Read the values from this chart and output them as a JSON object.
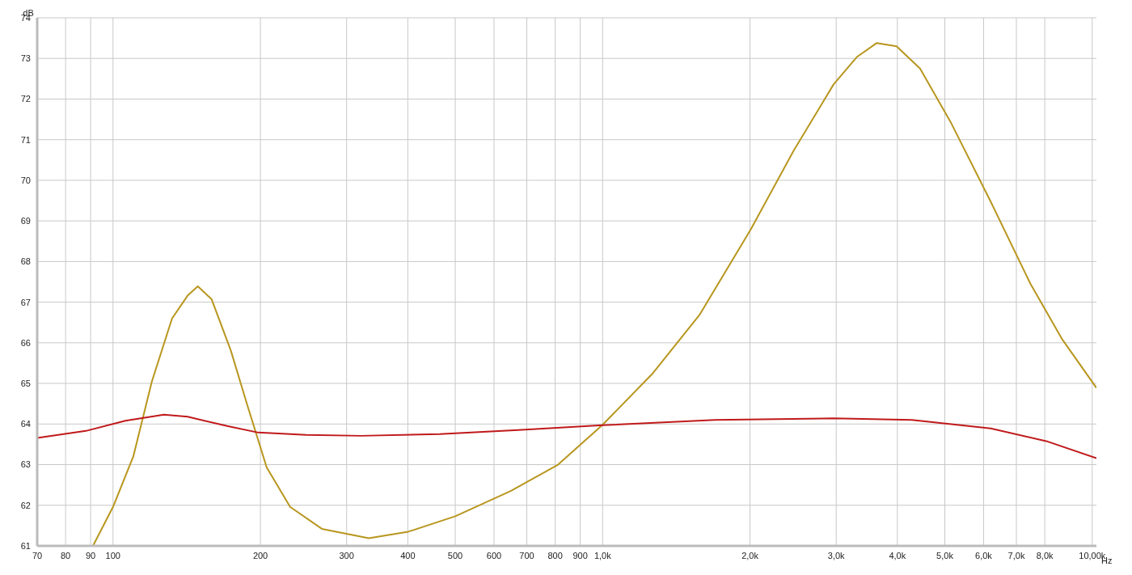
{
  "chart_data": {
    "type": "line",
    "xlabel": "Hz",
    "ylabel": "dB",
    "log": "x",
    "grid": true,
    "legend": false,
    "marker": "none",
    "line_style": "solid",
    "xlim": [
      70,
      10200
    ],
    "ylim": [
      61,
      74
    ],
    "xticks": [
      70,
      80,
      90,
      100,
      200,
      300,
      400,
      500,
      600,
      700,
      800,
      900,
      {
        "value": 1000,
        "label": "1,0k"
      },
      {
        "value": 2000,
        "label": "2,0k"
      },
      {
        "value": 3000,
        "label": "3,0k"
      },
      {
        "value": 4000,
        "label": "4,0k"
      },
      {
        "value": 5000,
        "label": "5,0k"
      },
      {
        "value": 6000,
        "label": "6,0k"
      },
      {
        "value": 7000,
        "label": "7,0k"
      },
      {
        "value": 8000,
        "label": "8,0k"
      },
      {
        "value": 10000,
        "label": "10,00k"
      }
    ],
    "yticks": [
      61,
      62,
      63,
      64,
      65,
      66,
      67,
      68,
      69,
      70,
      71,
      72,
      73,
      74
    ],
    "series": [
      {
        "color": "#b8961e",
        "x": [
          91,
          100,
          110,
          120,
          132,
          142,
          149,
          159,
          174,
          188,
          206,
          230,
          267,
          333,
          401,
          500,
          649,
          811,
          1000,
          1262,
          1576,
          2009,
          2456,
          2963,
          3310,
          3631,
          3985,
          4450,
          5155,
          6206,
          7480,
          8668,
          10200
        ],
        "values": [
          61.0,
          61.96,
          63.2,
          65.04,
          66.6,
          67.16,
          67.39,
          67.07,
          65.81,
          64.47,
          62.93,
          61.96,
          61.42,
          61.19,
          61.35,
          61.73,
          62.35,
          63.0,
          63.98,
          65.23,
          66.68,
          68.8,
          70.73,
          72.36,
          73.04,
          73.38,
          73.3,
          72.75,
          71.4,
          69.47,
          67.45,
          66.1,
          64.89
        ]
      },
      {
        "color": "#c0191b",
        "x": [
          70,
          88,
          106,
          127,
          142,
          171,
          198,
          248,
          321,
          465,
          672,
          1000,
          1697,
          2963,
          4282,
          6206,
          8053,
          10200
        ],
        "values": [
          63.66,
          63.83,
          64.08,
          64.23,
          64.18,
          63.95,
          63.79,
          63.73,
          63.71,
          63.75,
          63.85,
          63.97,
          64.1,
          64.14,
          64.1,
          63.89,
          63.58,
          63.16
        ]
      }
    ]
  }
}
